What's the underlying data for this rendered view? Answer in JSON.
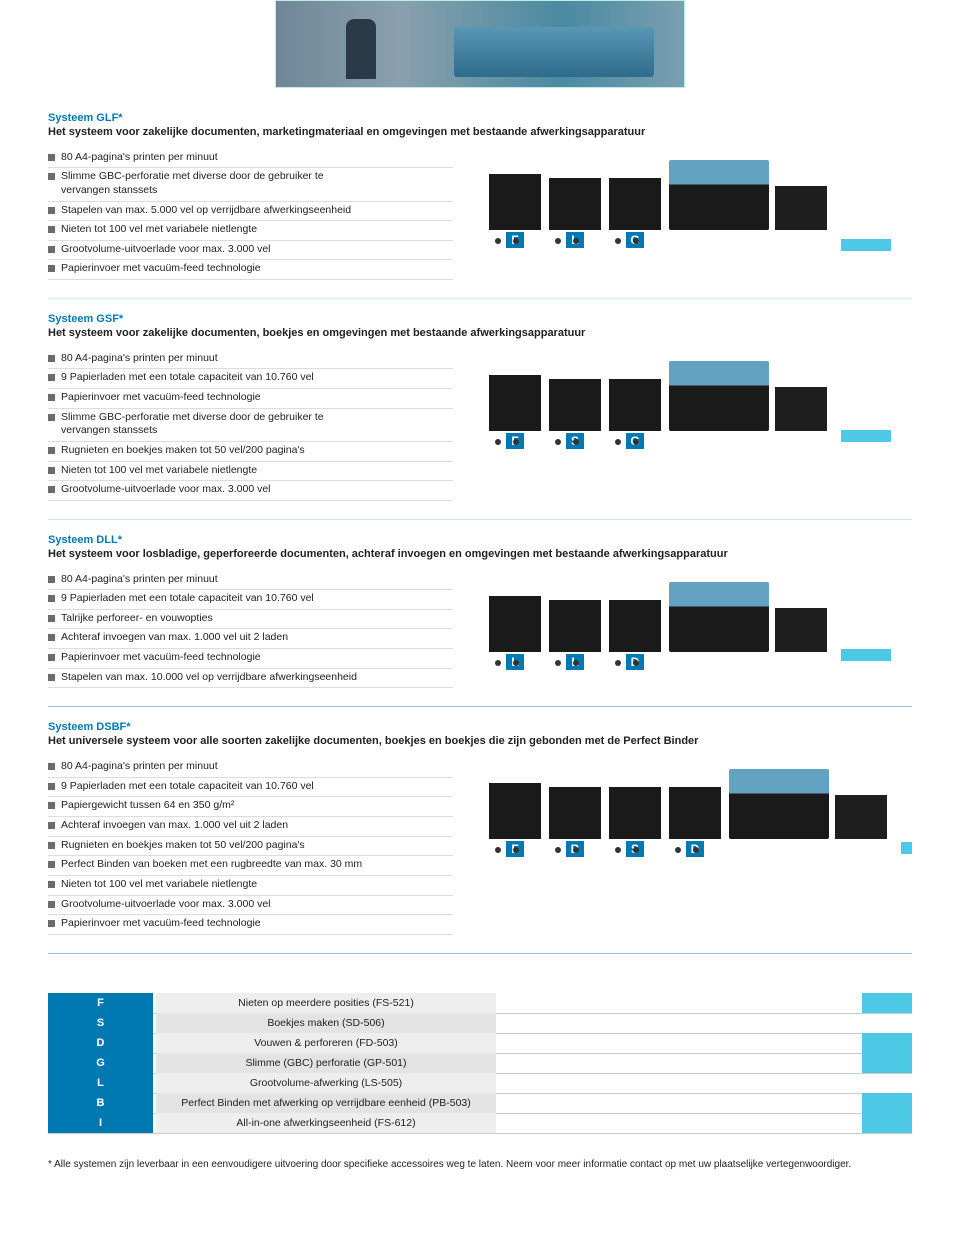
{
  "systems": [
    {
      "title": "Systeem GLF*",
      "subtitle": "Het systeem voor zakelijke documenten, marketingmateriaal en omgevingen met bestaande afwerkingsapparatuur",
      "labels": [
        "F",
        "L",
        "G"
      ],
      "bullets": [
        "80 A4-pagina's printen per minuut",
        "Slimme GBC-perforatie met diverse door de gebruiker te\n        vervangen stanssets",
        "Stapelen van max. 5.000 vel op verrijdbare afwerkingseenheid",
        "Nieten tot 100 vel met variabele nietlengte",
        "Grootvolume-uitvoerlade voor max. 3.000 vel",
        "Papierinvoer met vacuüm-feed technologie"
      ]
    },
    {
      "title": "Systeem GSF*",
      "subtitle": "Het systeem voor zakelijke documenten, boekjes en omgevingen met bestaande afwerkingsapparatuur",
      "labels": [
        "F",
        "S",
        "G"
      ],
      "bullets": [
        "80 A4-pagina's printen per minuut",
        "9 Papierladen met een totale capaciteit van 10.760 vel",
        "Papierinvoer met vacuüm-feed technologie",
        "Slimme GBC-perforatie met diverse door de gebruiker te\n        vervangen stanssets",
        "Rugnieten en boekjes maken tot 50 vel/200 pagina's",
        "Nieten tot 100 vel met variabele nietlengte",
        "Grootvolume-uitvoerlade voor max. 3.000 vel"
      ]
    },
    {
      "title": "Systeem DLL*",
      "subtitle": "Het systeem voor losbladige, geperforeerde documenten, achteraf invoegen en omgevingen met bestaande afwerkingsapparatuur",
      "labels": [
        "L",
        "L",
        "D"
      ],
      "bullets": [
        "80 A4-pagina's printen per minuut",
        "9 Papierladen met een totale capaciteit van 10.760 vel",
        "Talrijke perforeer- en vouwopties",
        "Achteraf invoegen van max. 1.000 vel uit 2 laden",
        "Papierinvoer met vacuüm-feed technologie",
        "Stapelen van max. 10.000 vel op verrijdbare afwerkingseenheid"
      ]
    },
    {
      "title": "Systeem DSBF*",
      "subtitle": "Het universele systeem voor alle soorten zakelijke documenten, boekjes en boekjes die zijn gebonden met de Perfect Binder",
      "labels": [
        "F",
        "B",
        "S",
        "D"
      ],
      "bullets": [
        "80 A4-pagina's printen per minuut",
        "9 Papierladen met een totale capaciteit van 10.760 vel",
        "Papiergewicht tussen 64 en 350 g/m²",
        "Achteraf invoegen van max. 1.000 vel uit 2 laden",
        "Rugnieten en boekjes maken tot 50 vel/200 pagina's",
        "Perfect Binden van boeken met een rugbreedte van max. 30 mm",
        "Nieten tot 100 vel met variabele nietlengte",
        "Grootvolume-uitvoerlade voor max. 3.000 vel",
        "Papierinvoer met vacuüm-feed technologie"
      ]
    }
  ],
  "legend": [
    {
      "code": "F",
      "desc": "Nieten op meerdere posities (FS-521)"
    },
    {
      "code": "S",
      "desc": "Boekjes maken (SD-506)"
    },
    {
      "code": "D",
      "desc": "Vouwen & perforeren (FD-503)"
    },
    {
      "code": "G",
      "desc": "Slimme (GBC) perforatie (GP-501)"
    },
    {
      "code": "L",
      "desc": "Grootvolume-afwerking (LS-505)"
    },
    {
      "code": "B",
      "desc": "Perfect Binden met afwerking op verrijdbare eenheid (PB-503)"
    },
    {
      "code": "I",
      "desc": "All-in-one afwerkingseenheid (FS-612)"
    }
  ],
  "footnote": "* Alle systemen zijn leverbaar in een eenvoudigere uitvoering door specifieke accessoires weg te laten. Neem voor meer informatie contact op met uw plaatselijke vertegenwoordiger.",
  "colors": {
    "accent": "#0079b3",
    "cyan": "#4dc9e6",
    "bullet": "#6b6b6b"
  },
  "cyan_rows": [
    0,
    2,
    3,
    5,
    6
  ]
}
